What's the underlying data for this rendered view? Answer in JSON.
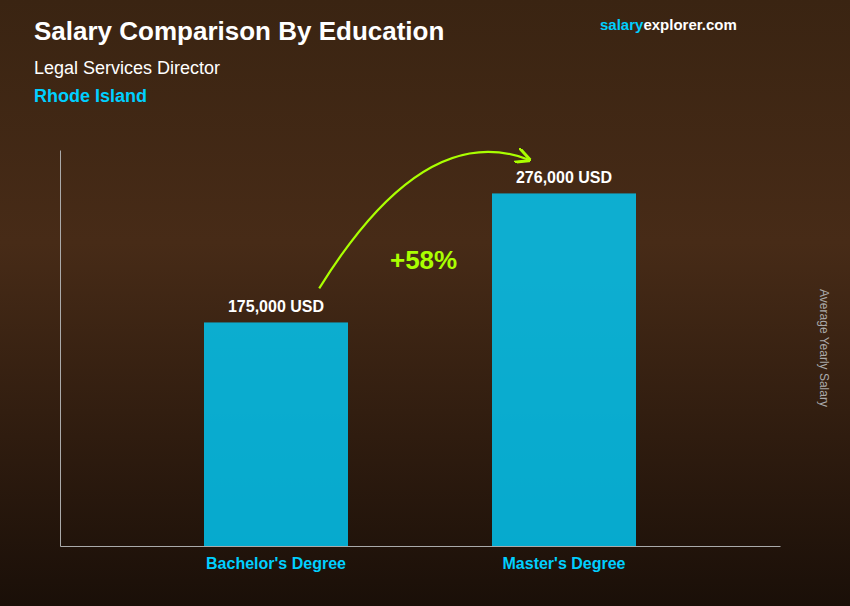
{
  "chart_data": {
    "type": "bar",
    "title": "Salary Comparison By Education",
    "subtitle": [
      "Legal Services Director",
      "Rhode Island"
    ],
    "annotations": [
      "salary",
      "explorer.com",
      "+58%"
    ],
    "ylabel": "Average Yearly Salary",
    "categories": [
      "Bachelor's Degree",
      "Master's Degree"
    ],
    "values": [
      175000,
      276000
    ],
    "value_labels": [
      "175,000 USD",
      "276,000 USD"
    ],
    "data_labels": true,
    "color": "#00CFFF",
    "ylim": [
      0,
      310000
    ],
    "grid": false,
    "tick_labels": "x"
  }
}
